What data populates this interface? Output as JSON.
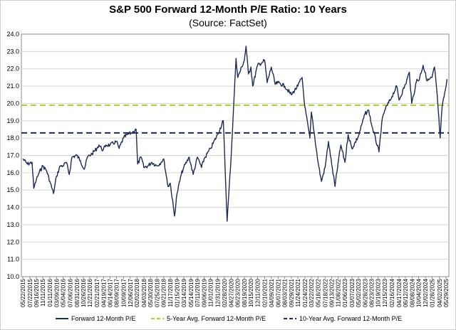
{
  "chart_data": {
    "type": "line",
    "title": "S&P 500 Forward 12-Month P/E Ratio: 10 Years",
    "subtitle": "(Source: FactSet)",
    "ylim": [
      10.0,
      24.0
    ],
    "yticks": [
      "10.0",
      "11.0",
      "12.0",
      "13.0",
      "14.0",
      "15.0",
      "16.0",
      "17.0",
      "18.0",
      "19.0",
      "20.0",
      "21.0",
      "22.0",
      "23.0",
      "24.0"
    ],
    "x_ticks": [
      "05/22/2015",
      "07/22/2015",
      "09/16/2015",
      "11/11/2015",
      "01/11/2016",
      "03/09/2016",
      "05/04/2016",
      "07/06/2016",
      "08/31/2016",
      "10/26/2016",
      "12/21/2016",
      "02/21/2017",
      "04/19/2017",
      "06/14/2017",
      "08/09/2017",
      "10/09/2017",
      "12/06/2017",
      "02/02/2018",
      "04/03/2018",
      "05/30/2018",
      "07/25/2018",
      "09/21/2018",
      "11/17/2018",
      "01/15/2019",
      "03/14/2019",
      "05/14/2019",
      "07/11/2019",
      "09/06/2019",
      "11/01/2019",
      "12/31/2019",
      "02/28/2020",
      "04/27/2020",
      "06/23/2020",
      "08/19/2020",
      "10/15/2020",
      "12/11/2020",
      "02/10/2021",
      "04/09/2021",
      "06/07/2021",
      "08/03/2021",
      "09/29/2021",
      "11/24/2021",
      "01/24/2022",
      "03/22/2022",
      "05/18/2022",
      "07/18/2022",
      "09/13/2022",
      "11/08/2022",
      "01/06/2023",
      "03/07/2023",
      "05/02/2023",
      "06/28/2023",
      "08/23/2023",
      "10/19/2023",
      "12/15/2023",
      "02/16/2024",
      "04/17/2024",
      "06/12/2024",
      "08/08/2024",
      "10/04/2024",
      "12/02/2024",
      "01/28/2025",
      "04/02/2025",
      "05/29/2025"
    ],
    "x_tick_dates": [
      "2015-05-22",
      "2015-07-22",
      "2015-09-16",
      "2015-11-11",
      "2016-01-11",
      "2016-03-09",
      "2016-05-04",
      "2016-07-06",
      "2016-08-31",
      "2016-10-26",
      "2016-12-21",
      "2017-02-21",
      "2017-04-19",
      "2017-06-14",
      "2017-08-09",
      "2017-10-09",
      "2017-12-06",
      "2018-02-02",
      "2018-04-03",
      "2018-05-30",
      "2018-07-25",
      "2018-09-21",
      "2018-11-17",
      "2019-01-15",
      "2019-03-14",
      "2019-05-14",
      "2019-07-11",
      "2019-09-06",
      "2019-11-01",
      "2019-12-31",
      "2020-02-28",
      "2020-04-27",
      "2020-06-23",
      "2020-08-19",
      "2020-10-15",
      "2020-12-11",
      "2021-02-10",
      "2021-04-09",
      "2021-06-07",
      "2021-08-03",
      "2021-09-29",
      "2021-11-24",
      "2022-01-24",
      "2022-03-22",
      "2022-05-18",
      "2022-07-18",
      "2022-09-13",
      "2022-11-08",
      "2023-01-06",
      "2023-03-07",
      "2023-05-02",
      "2023-06-28",
      "2023-08-23",
      "2023-10-19",
      "2023-12-15",
      "2024-02-16",
      "2024-04-17",
      "2024-06-12",
      "2024-08-08",
      "2024-10-04",
      "2024-12-02",
      "2025-01-28",
      "2025-04-02",
      "2025-05-29"
    ],
    "grid": true,
    "legend_position": "bottom",
    "series": [
      {
        "name": "Forward 12-Month P/E",
        "color": "#1f2a55",
        "style": "solid",
        "points": [
          [
            "2015-05-22",
            16.8
          ],
          [
            "2015-07-01",
            16.5
          ],
          [
            "2015-08-10",
            16.6
          ],
          [
            "2015-08-25",
            15.1
          ],
          [
            "2015-09-16",
            15.6
          ],
          [
            "2015-10-10",
            16.0
          ],
          [
            "2015-11-11",
            16.4
          ],
          [
            "2015-12-15",
            16.1
          ],
          [
            "2016-01-11",
            15.5
          ],
          [
            "2016-02-11",
            14.8
          ],
          [
            "2016-03-09",
            15.8
          ],
          [
            "2016-04-10",
            16.4
          ],
          [
            "2016-05-04",
            16.4
          ],
          [
            "2016-06-01",
            16.6
          ],
          [
            "2016-06-27",
            15.9
          ],
          [
            "2016-07-20",
            16.9
          ],
          [
            "2016-08-31",
            17.0
          ],
          [
            "2016-10-01",
            16.7
          ],
          [
            "2016-11-04",
            16.2
          ],
          [
            "2016-12-01",
            16.9
          ],
          [
            "2017-01-10",
            17.1
          ],
          [
            "2017-02-21",
            17.4
          ],
          [
            "2017-03-10",
            17.6
          ],
          [
            "2017-04-15",
            17.3
          ],
          [
            "2017-05-10",
            17.6
          ],
          [
            "2017-06-14",
            17.6
          ],
          [
            "2017-08-09",
            17.8
          ],
          [
            "2017-09-01",
            17.4
          ],
          [
            "2017-10-09",
            18.0
          ],
          [
            "2017-11-10",
            18.2
          ],
          [
            "2017-12-20",
            18.3
          ],
          [
            "2018-01-26",
            18.5
          ],
          [
            "2018-02-08",
            16.5
          ],
          [
            "2018-03-10",
            16.9
          ],
          [
            "2018-04-03",
            16.3
          ],
          [
            "2018-05-10",
            16.4
          ],
          [
            "2018-06-10",
            16.6
          ],
          [
            "2018-07-25",
            16.4
          ],
          [
            "2018-08-30",
            16.6
          ],
          [
            "2018-09-21",
            16.8
          ],
          [
            "2018-10-29",
            15.2
          ],
          [
            "2018-11-17",
            15.4
          ],
          [
            "2018-12-24",
            13.5
          ],
          [
            "2019-01-15",
            14.8
          ],
          [
            "2019-02-20",
            15.9
          ],
          [
            "2019-03-14",
            16.3
          ],
          [
            "2019-04-30",
            16.9
          ],
          [
            "2019-06-03",
            15.9
          ],
          [
            "2019-07-11",
            16.9
          ],
          [
            "2019-08-15",
            16.3
          ],
          [
            "2019-09-06",
            16.8
          ],
          [
            "2019-11-01",
            17.4
          ],
          [
            "2019-12-31",
            18.2
          ],
          [
            "2020-02-19",
            19.0
          ],
          [
            "2020-03-23",
            13.2
          ],
          [
            "2020-04-27",
            17.0
          ],
          [
            "2020-06-08",
            22.6
          ],
          [
            "2020-06-23",
            21.5
          ],
          [
            "2020-08-19",
            22.5
          ],
          [
            "2020-09-02",
            23.3
          ],
          [
            "2020-09-23",
            21.7
          ],
          [
            "2020-10-15",
            22.1
          ],
          [
            "2020-10-30",
            21.0
          ],
          [
            "2020-12-11",
            22.2
          ],
          [
            "2021-01-27",
            22.4
          ],
          [
            "2021-02-10",
            22.5
          ],
          [
            "2021-03-04",
            21.2
          ],
          [
            "2021-04-09",
            22.1
          ],
          [
            "2021-05-12",
            21.1
          ],
          [
            "2021-06-07",
            21.2
          ],
          [
            "2021-08-03",
            21.0
          ],
          [
            "2021-09-29",
            20.5
          ],
          [
            "2021-11-24",
            21.0
          ],
          [
            "2021-12-31",
            21.5
          ],
          [
            "2022-01-24",
            19.8
          ],
          [
            "2022-03-08",
            18.0
          ],
          [
            "2022-03-22",
            19.5
          ],
          [
            "2022-05-18",
            16.6
          ],
          [
            "2022-06-16",
            15.5
          ],
          [
            "2022-07-18",
            16.3
          ],
          [
            "2022-08-16",
            17.8
          ],
          [
            "2022-09-13",
            16.5
          ],
          [
            "2022-10-12",
            15.2
          ],
          [
            "2022-11-08",
            16.6
          ],
          [
            "2022-12-01",
            17.6
          ],
          [
            "2023-01-06",
            16.6
          ],
          [
            "2023-02-02",
            18.2
          ],
          [
            "2023-03-07",
            17.4
          ],
          [
            "2023-05-02",
            18.1
          ],
          [
            "2023-06-28",
            19.4
          ],
          [
            "2023-07-31",
            19.6
          ],
          [
            "2023-08-23",
            18.8
          ],
          [
            "2023-10-27",
            17.2
          ],
          [
            "2023-11-20",
            18.9
          ],
          [
            "2023-12-15",
            19.6
          ],
          [
            "2024-02-16",
            20.4
          ],
          [
            "2024-03-28",
            21.0
          ],
          [
            "2024-04-17",
            20.2
          ],
          [
            "2024-06-12",
            21.1
          ],
          [
            "2024-07-16",
            21.8
          ],
          [
            "2024-08-05",
            20.0
          ],
          [
            "2024-09-20",
            21.4
          ],
          [
            "2024-10-04",
            21.3
          ],
          [
            "2024-11-11",
            22.2
          ],
          [
            "2024-12-18",
            21.3
          ],
          [
            "2025-01-28",
            21.5
          ],
          [
            "2025-02-18",
            22.1
          ],
          [
            "2025-03-13",
            20.5
          ],
          [
            "2025-04-08",
            18.0
          ],
          [
            "2025-04-25",
            19.8
          ],
          [
            "2025-05-29",
            21.0
          ],
          [
            "2025-06-06",
            21.4
          ]
        ]
      },
      {
        "name": "5-Year Avg. Forward 12-Month P/E",
        "color": "#a6d22e",
        "style": "dashed",
        "value": 19.9
      },
      {
        "name": "10-Year Avg. Forward 12-Month P/E",
        "color": "#1f2a55",
        "style": "dashed",
        "value": 18.3
      }
    ]
  }
}
